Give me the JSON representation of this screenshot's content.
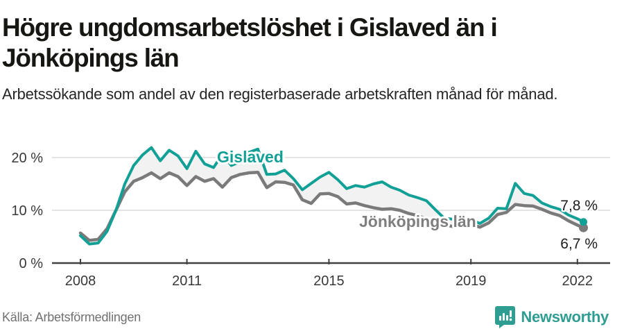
{
  "header": {
    "title": "Högre ungdomsarbetslöshet i Gislaved än i Jönköpings län",
    "subtitle": "Arbetssökande som andel av den registerbaserade arbetskraften månad för månad."
  },
  "footer": {
    "source": "Källa: Arbetsförmedlingen",
    "brand": "Newsworthy",
    "brand_icon": "bar-chart-speech-bubble-icon",
    "brand_color": "#2F9D92"
  },
  "colors": {
    "accent_teal": "#12A096",
    "series_gray": "#7A7A7A",
    "band_fill": "#F2F2F2",
    "grid": "#DBDBDB",
    "axis": "#404040"
  },
  "chart_data": {
    "type": "line",
    "title": "Högre ungdomsarbetslöshet i Gislaved än i Jönköpings län",
    "subtitle": "Arbetssökande som andel av den registerbaserade arbetskraften månad för månad.",
    "source": "Källa: Arbetsförmedlingen",
    "xlabel": "",
    "ylabel": "",
    "grid": "horizontal-only",
    "legend_position": "inline-labels",
    "band_between_series": true,
    "ylim": [
      0,
      23.5
    ],
    "yticks": [
      0,
      10,
      20
    ],
    "ytick_labels": [
      "0 %",
      "10 %",
      "20 %"
    ],
    "xticks": [
      2008,
      2011,
      2015,
      2019,
      2022
    ],
    "xtick_labels": [
      "2008",
      "2011",
      "2015",
      "2019",
      "2022"
    ],
    "xlim": [
      2008,
      2022.3
    ],
    "x": [
      2008.0,
      2008.25,
      2008.5,
      2008.75,
      2009.0,
      2009.25,
      2009.5,
      2009.75,
      2010.0,
      2010.25,
      2010.5,
      2010.75,
      2011.0,
      2011.25,
      2011.5,
      2011.75,
      2012.0,
      2012.25,
      2012.5,
      2012.75,
      2013.0,
      2013.25,
      2013.5,
      2013.75,
      2014.0,
      2014.25,
      2014.5,
      2014.75,
      2015.0,
      2015.25,
      2015.5,
      2015.75,
      2016.0,
      2016.25,
      2016.5,
      2016.75,
      2017.0,
      2017.25,
      2017.5,
      2017.75,
      2018.0,
      2018.25,
      2018.5,
      2018.75,
      2019.0,
      2019.25,
      2019.5,
      2019.75,
      2020.0,
      2020.25,
      2020.5,
      2020.75,
      2021.0,
      2021.25,
      2021.5,
      2021.75,
      2022.0,
      2022.17
    ],
    "series": [
      {
        "name": "Gislaved",
        "color": "#12A096",
        "values": [
          5.2,
          3.6,
          3.8,
          6.0,
          10.0,
          15.0,
          18.5,
          20.5,
          21.9,
          19.4,
          21.4,
          20.3,
          17.9,
          21.2,
          18.8,
          18.1,
          20.6,
          18.5,
          19.2,
          21.0,
          21.6,
          16.8,
          16.9,
          17.6,
          16.0,
          13.9,
          15.1,
          16.3,
          17.2,
          15.8,
          14.1,
          14.7,
          14.4,
          15.0,
          15.4,
          14.4,
          13.8,
          12.9,
          12.4,
          11.8,
          10.1,
          8.5,
          8.3,
          8.3,
          8.3,
          7.5,
          8.5,
          10.4,
          10.3,
          15.1,
          13.2,
          12.8,
          11.4,
          10.7,
          10.2,
          9.1,
          8.4,
          7.8
        ]
      },
      {
        "name": "Jönköpings län",
        "color": "#7A7A7A",
        "values": [
          5.7,
          4.3,
          4.5,
          6.5,
          10.0,
          13.5,
          15.5,
          16.2,
          17.1,
          16.0,
          17.1,
          16.4,
          14.7,
          16.4,
          15.5,
          16.0,
          14.4,
          16.2,
          16.8,
          17.1,
          17.2,
          14.3,
          15.4,
          15.3,
          14.8,
          12.0,
          11.3,
          13.1,
          13.2,
          12.6,
          11.2,
          11.4,
          10.9,
          10.5,
          10.2,
          10.3,
          10.0,
          9.4,
          9.0,
          8.4,
          7.9,
          7.3,
          6.9,
          7.1,
          7.4,
          6.8,
          7.6,
          9.2,
          9.6,
          11.1,
          10.9,
          10.8,
          10.2,
          9.5,
          9.0,
          8.0,
          7.2,
          6.7
        ]
      }
    ],
    "end_labels": [
      "7,8 %",
      "6,7 %"
    ],
    "end_values": [
      7.8,
      6.7
    ]
  }
}
